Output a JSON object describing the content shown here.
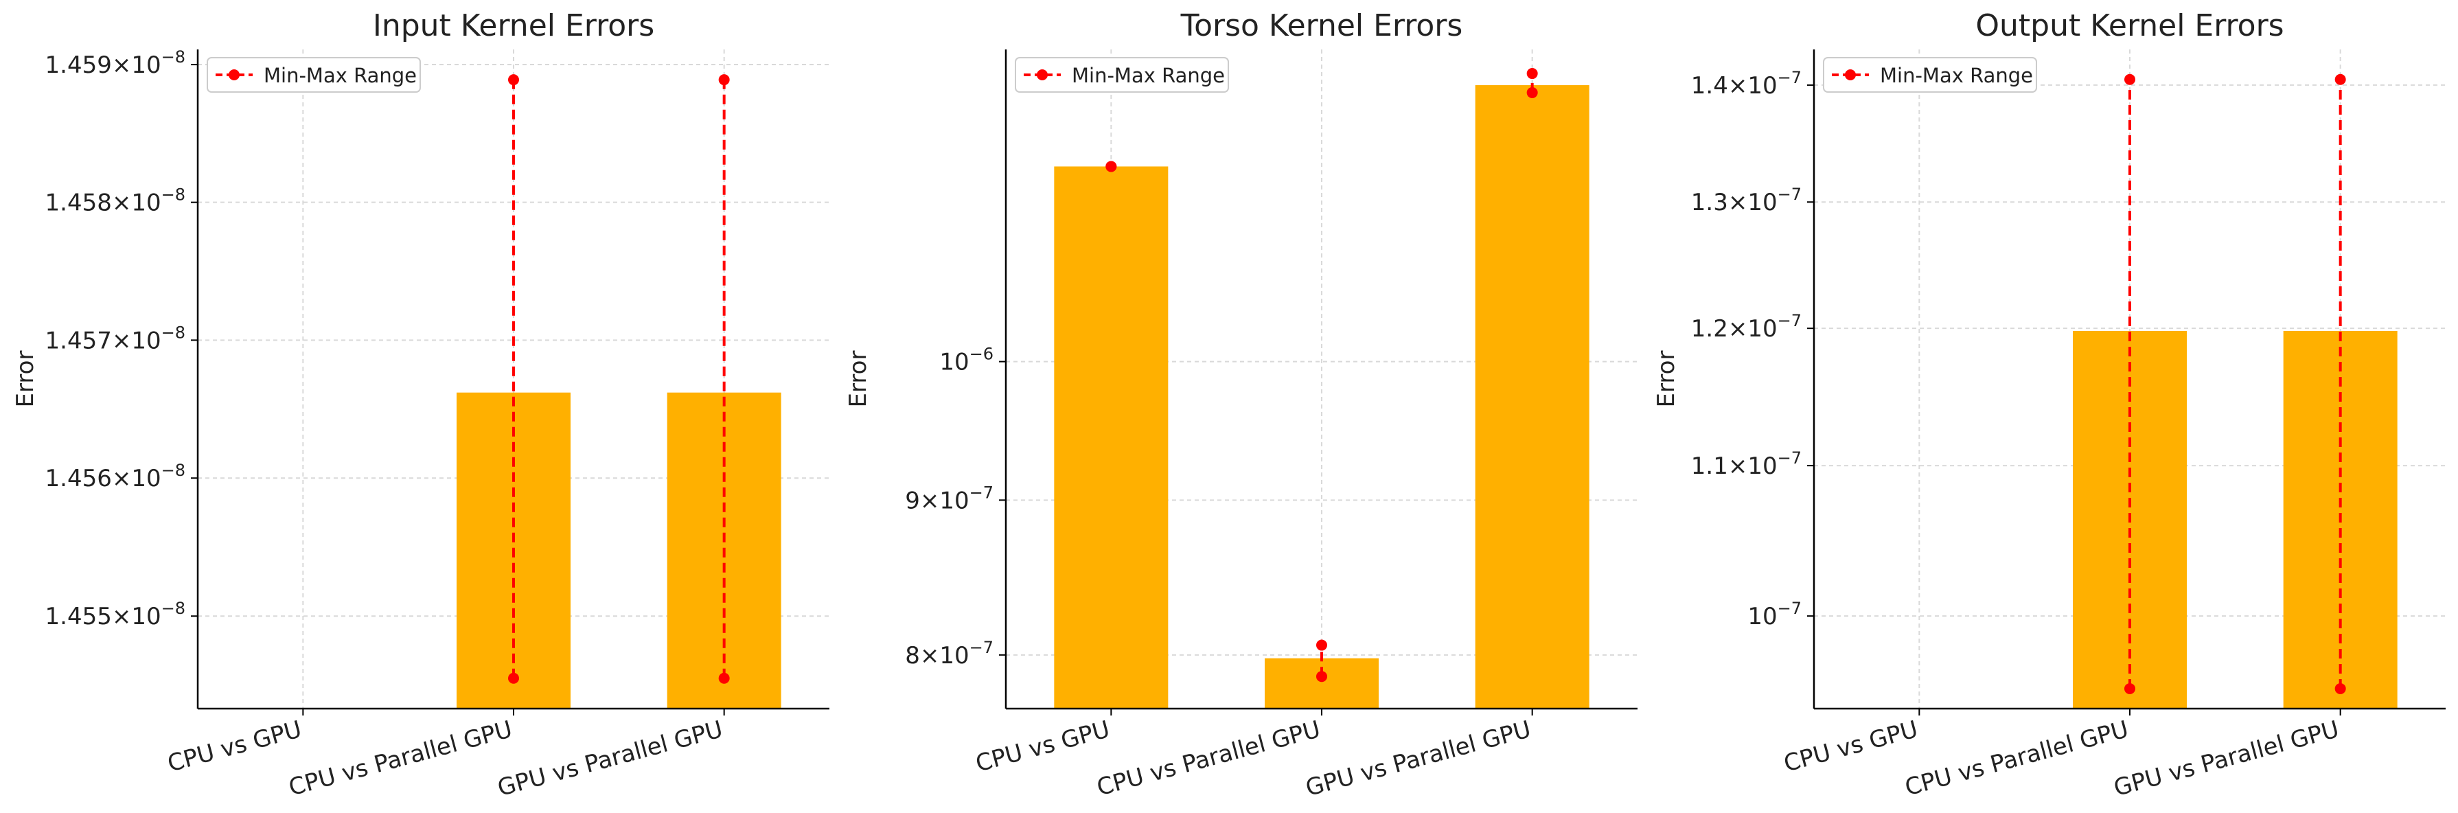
{
  "chart_data": [
    {
      "type": "bar",
      "title": "Input Kernel Errors",
      "xlabel": "",
      "ylabel": "Error",
      "scale": "log",
      "grid": true,
      "legend": {
        "label": "Min-Max Range",
        "placement": "top-left"
      },
      "categories": [
        "CPU vs GPU",
        "CPU vs Parallel GPU",
        "GPU vs Parallel GPU"
      ],
      "values": [
        null,
        1.45662e-08,
        1.45662e-08
      ],
      "ranges": [
        null,
        [
          1.45455e-08,
          1.45889e-08
        ],
        [
          1.45455e-08,
          1.45889e-08
        ]
      ],
      "ylim": [
        1.45433e-08,
        1.45911e-08
      ],
      "yticks": [
        {
          "value": 1.455e-08,
          "mantissa": "1.455",
          "exp": "−8"
        },
        {
          "value": 1.456e-08,
          "mantissa": "1.456",
          "exp": "−8"
        },
        {
          "value": 1.457e-08,
          "mantissa": "1.457",
          "exp": "−8"
        },
        {
          "value": 1.458e-08,
          "mantissa": "1.458",
          "exp": "−8"
        },
        {
          "value": 1.459e-08,
          "mantissa": "1.459",
          "exp": "−8"
        }
      ]
    },
    {
      "type": "bar",
      "title": "Torso Kernel Errors",
      "xlabel": "",
      "ylabel": "Error",
      "scale": "log",
      "grid": true,
      "legend": {
        "label": "Min-Max Range",
        "placement": "top-left"
      },
      "categories": [
        "CPU vs GPU",
        "CPU vs Parallel GPU",
        "GPU vs Parallel GPU"
      ],
      "values": [
        1.16e-06,
        7.98e-07,
        1.234e-06
      ],
      "ranges": [
        [
          1.16e-06,
          1.16e-06
        ],
        [
          7.87e-07,
          8.06e-07
        ],
        [
          1.227e-06,
          1.245e-06
        ]
      ],
      "ylim": [
        7.68e-07,
        1.268e-06
      ],
      "yticks": [
        {
          "value": 8e-07,
          "mantissa": "8",
          "exp": "−7"
        },
        {
          "value": 9e-07,
          "mantissa": "9",
          "exp": "−7"
        },
        {
          "value": 1e-06,
          "mantissa": "",
          "exp": "−6"
        }
      ]
    },
    {
      "type": "bar",
      "title": "Output Kernel Errors",
      "xlabel": "",
      "ylabel": "Error",
      "scale": "log",
      "grid": true,
      "legend": {
        "label": "Min-Max Range",
        "placement": "top-left"
      },
      "categories": [
        "CPU vs GPU",
        "CPU vs Parallel GPU",
        "GPU vs Parallel GPU"
      ],
      "values": [
        null,
        1.198e-07,
        1.198e-07
      ],
      "ranges": [
        null,
        [
          9.55e-08,
          1.405e-07
        ],
        [
          9.55e-08,
          1.405e-07
        ]
      ],
      "ylim": [
        9.43e-08,
        1.432e-07
      ],
      "yticks": [
        {
          "value": 1e-07,
          "mantissa": "",
          "exp": "−7"
        },
        {
          "value": 1.1e-07,
          "mantissa": "1.1",
          "exp": "−7"
        },
        {
          "value": 1.2e-07,
          "mantissa": "1.2",
          "exp": "−7"
        },
        {
          "value": 1.3e-07,
          "mantissa": "1.3",
          "exp": "−7"
        },
        {
          "value": 1.4e-07,
          "mantissa": "1.4",
          "exp": "−7"
        }
      ]
    }
  ],
  "colors": {
    "bar": "#FFB000",
    "range": "#FF0000",
    "grid": "#d9d9d9",
    "axis": "#000000",
    "text": "#222222"
  }
}
